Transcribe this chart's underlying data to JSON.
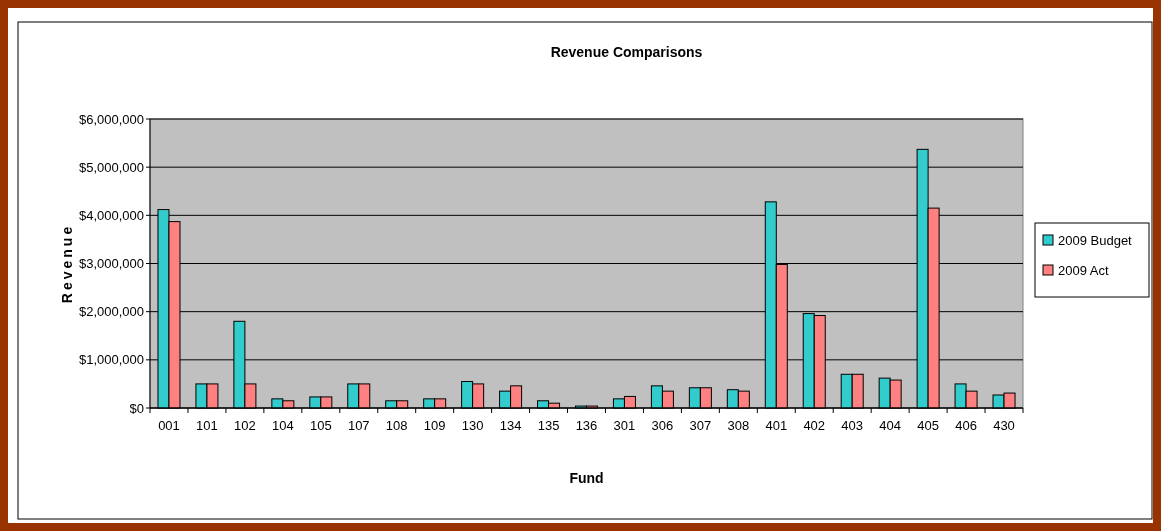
{
  "chart_data": {
    "type": "bar",
    "title": "Revenue Comparisons",
    "xlabel": "Fund",
    "ylabel": "Revenue",
    "categories": [
      "001",
      "101",
      "102",
      "104",
      "105",
      "107",
      "108",
      "109",
      "130",
      "134",
      "135",
      "136",
      "301",
      "306",
      "307",
      "308",
      "401",
      "402",
      "403",
      "404",
      "405",
      "406",
      "430"
    ],
    "series": [
      {
        "name": "2009 Budget",
        "color": "#33cccc",
        "values": [
          4120000,
          500000,
          1800000,
          190000,
          230000,
          500000,
          150000,
          190000,
          550000,
          350000,
          150000,
          40000,
          190000,
          460000,
          420000,
          380000,
          4280000,
          1960000,
          700000,
          620000,
          5370000,
          500000,
          270000
        ]
      },
      {
        "name": "2009 Act",
        "color": "#ff8080",
        "values": [
          3870000,
          500000,
          500000,
          150000,
          230000,
          500000,
          150000,
          190000,
          500000,
          460000,
          100000,
          40000,
          240000,
          350000,
          420000,
          350000,
          2980000,
          1920000,
          700000,
          580000,
          4150000,
          350000,
          310000
        ]
      }
    ],
    "ylim": [
      0,
      6000000
    ],
    "yticks": [
      {
        "value": 0,
        "label": "$0"
      },
      {
        "value": 1000000,
        "label": "$1,000,000"
      },
      {
        "value": 2000000,
        "label": "$2,000,000"
      },
      {
        "value": 3000000,
        "label": "$3,000,000"
      },
      {
        "value": 4000000,
        "label": "$4,000,000"
      },
      {
        "value": 5000000,
        "label": "$5,000,000"
      },
      {
        "value": 6000000,
        "label": "$6,000,000"
      }
    ],
    "grid": "y",
    "legend": "right"
  }
}
